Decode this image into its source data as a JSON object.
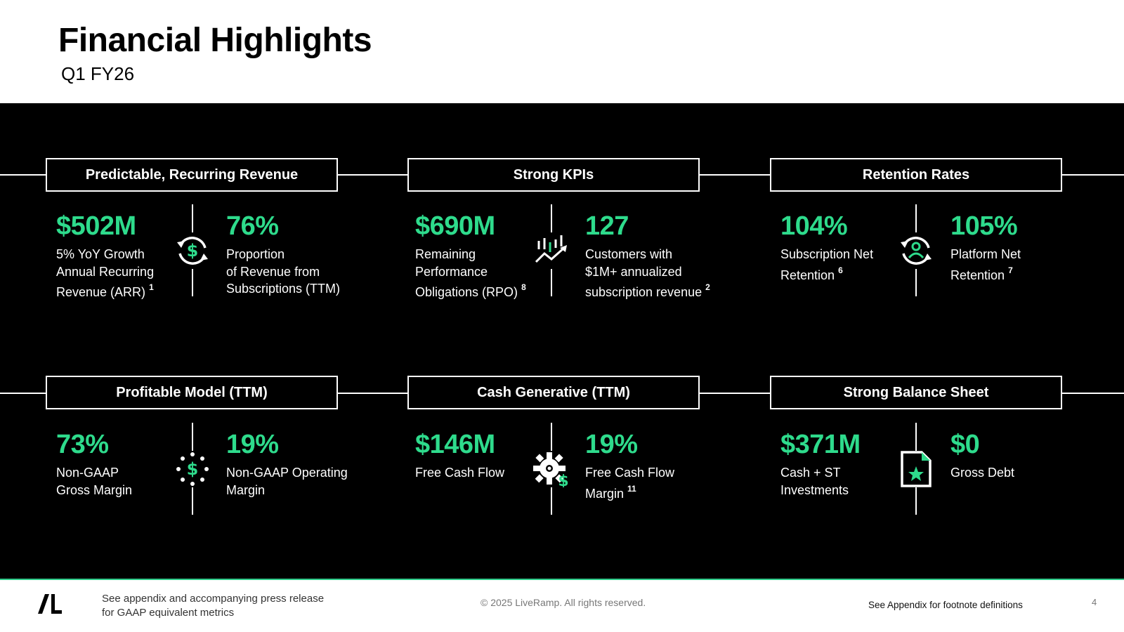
{
  "slide": {
    "title": "Financial Highlights",
    "subtitle": "Q1 FY26"
  },
  "colors": {
    "accent": "#2edb8c",
    "panel": "#000000",
    "text": "#ffffff"
  },
  "row1": {
    "categories": [
      "Predictable, Recurring Revenue",
      "Strong KPIs",
      "Retention Rates"
    ],
    "groups": [
      {
        "icon": "recurring-dollar-icon",
        "left": {
          "value": "$502M",
          "lines": [
            "5% YoY Growth",
            "Annual Recurring",
            "Revenue (ARR)"
          ],
          "footnote": "1"
        },
        "right": {
          "value": "76%",
          "lines": [
            "Proportion",
            "of Revenue from",
            "Subscriptions (TTM)"
          ],
          "footnote": ""
        }
      },
      {
        "icon": "growth-chart-icon",
        "left": {
          "value": "$690M",
          "lines": [
            "Remaining",
            "Performance",
            "Obligations (RPO)"
          ],
          "footnote": "8"
        },
        "right": {
          "value": "127",
          "lines": [
            "Customers with",
            "$1M+ annualized",
            "subscription revenue"
          ],
          "footnote": "2"
        }
      },
      {
        "icon": "user-refresh-icon",
        "left": {
          "value": "104%",
          "lines": [
            "Subscription Net",
            "Retention"
          ],
          "footnote": "6"
        },
        "right": {
          "value": "105%",
          "lines": [
            "Platform Net",
            "Retention"
          ],
          "footnote": "7"
        }
      }
    ]
  },
  "row2": {
    "categories": [
      "Profitable Model (TTM)",
      "Cash Generative (TTM)",
      "Strong Balance Sheet"
    ],
    "groups": [
      {
        "icon": "dotted-dollar-icon",
        "left": {
          "value": "73%",
          "lines": [
            "Non-GAAP",
            "Gross Margin"
          ],
          "footnote": ""
        },
        "right": {
          "value": "19%",
          "lines": [
            "Non-GAAP Operating",
            "Margin"
          ],
          "footnote": ""
        }
      },
      {
        "icon": "gear-dollar-icon",
        "left": {
          "value": "$146M",
          "lines": [
            "Free Cash Flow"
          ],
          "footnote": ""
        },
        "right": {
          "value": "19%",
          "lines": [
            "Free Cash Flow",
            "Margin"
          ],
          "footnote": "11"
        }
      },
      {
        "icon": "document-star-icon",
        "left": {
          "value": "$371M",
          "lines": [
            "Cash + ST",
            "Investments"
          ],
          "footnote": ""
        },
        "right": {
          "value": "$0",
          "lines": [
            "Gross Debt"
          ],
          "footnote": ""
        }
      }
    ]
  },
  "footer": {
    "logo": "/L",
    "note_lines": [
      "See appendix and accompanying press release",
      "for GAAP equivalent metrics"
    ],
    "copyright": "© 2025 LiveRamp. All rights reserved.",
    "footnote_ref": "See Appendix for footnote definitions",
    "page_number": "4"
  }
}
